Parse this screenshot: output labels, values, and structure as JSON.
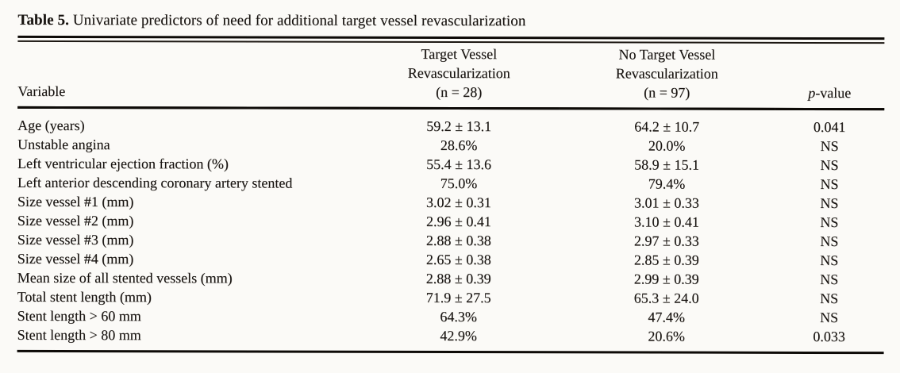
{
  "page": {
    "background_color": "#fbfaf7",
    "ink_color": "#171310"
  },
  "table": {
    "title": {
      "label": "Table 5.",
      "text": " Univariate predictors of need for additional target vessel revascularization"
    },
    "header": {
      "variable": "Variable",
      "group1": {
        "line1": "Target Vessel",
        "line2": "Revascularization",
        "line3": "(n = 28)"
      },
      "group2": {
        "line1": "No Target Vessel",
        "line2": "Revascularization",
        "line3": "(n = 97)"
      },
      "pvalue": "p-value"
    },
    "rows": [
      {
        "variable": "Age (years)",
        "tvr": "59.2 ± 13.1",
        "no_tvr": "64.2 ± 10.7",
        "p": "0.041"
      },
      {
        "variable": "Unstable angina",
        "tvr": "28.6%",
        "no_tvr": "20.0%",
        "p": "NS"
      },
      {
        "variable": "Left ventricular ejection fraction (%)",
        "tvr": "55.4 ± 13.6",
        "no_tvr": "58.9 ± 15.1",
        "p": "NS"
      },
      {
        "variable": "Left anterior descending coronary artery stented",
        "tvr": "75.0%",
        "no_tvr": "79.4%",
        "p": "NS"
      },
      {
        "variable": "Size vessel #1 (mm)",
        "tvr": "3.02 ± 0.31",
        "no_tvr": "3.01 ± 0.33",
        "p": "NS"
      },
      {
        "variable": "Size vessel #2 (mm)",
        "tvr": "2.96 ± 0.41",
        "no_tvr": "3.10 ± 0.41",
        "p": "NS"
      },
      {
        "variable": "Size vessel #3 (mm)",
        "tvr": "2.88 ± 0.38",
        "no_tvr": "2.97 ± 0.33",
        "p": "NS"
      },
      {
        "variable": "Size vessel #4 (mm)",
        "tvr": "2.65 ± 0.38",
        "no_tvr": "2.85 ± 0.39",
        "p": "NS"
      },
      {
        "variable": "Mean size of all stented vessels (mm)",
        "tvr": "2.88 ± 0.39",
        "no_tvr": "2.99 ± 0.39",
        "p": "NS"
      },
      {
        "variable": "Total stent length (mm)",
        "tvr": "71.9 ± 27.5",
        "no_tvr": "65.3 ± 24.0",
        "p": "NS"
      },
      {
        "variable": "Stent length > 60 mm",
        "tvr": "64.3%",
        "no_tvr": "47.4%",
        "p": "NS"
      },
      {
        "variable": "Stent length > 80 mm",
        "tvr": "42.9%",
        "no_tvr": "20.6%",
        "p": "0.033"
      }
    ]
  }
}
